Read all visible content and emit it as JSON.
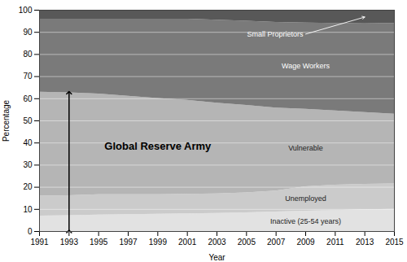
{
  "chart_data": {
    "type": "area",
    "stacked": true,
    "x": [
      1991,
      1993,
      1995,
      1997,
      1999,
      2001,
      2003,
      2005,
      2007,
      2009,
      2011,
      2013,
      2015
    ],
    "series": [
      {
        "name": "Inactive (25-54 years)",
        "color": "#e2e2e2",
        "values": [
          7.0,
          7.2,
          7.4,
          7.6,
          7.8,
          8.0,
          8.2,
          8.5,
          8.8,
          9.2,
          9.5,
          9.8,
          10.0
        ]
      },
      {
        "name": "Unemployed",
        "color": "#cbcbcb",
        "values": [
          9.0,
          9.0,
          9.2,
          9.0,
          8.8,
          8.8,
          8.8,
          9.0,
          9.5,
          11.0,
          11.5,
          11.5,
          11.5
        ]
      },
      {
        "name": "Vulnerable",
        "color": "#b5b5b5",
        "values": [
          47.0,
          46.5,
          45.5,
          44.5,
          43.5,
          42.5,
          41.0,
          39.5,
          37.5,
          35.0,
          33.5,
          32.5,
          31.5
        ]
      },
      {
        "name": "Wage Workers",
        "color": "#7a7a7a",
        "values": [
          33.0,
          33.3,
          33.9,
          34.9,
          35.9,
          36.7,
          37.5,
          38.0,
          38.7,
          39.0,
          39.5,
          40.0,
          41.0
        ]
      },
      {
        "name": "Small Proprietors",
        "color": "#585858",
        "values": [
          4.0,
          4.0,
          4.0,
          4.0,
          4.0,
          4.0,
          4.5,
          5.0,
          5.5,
          5.8,
          6.0,
          6.2,
          6.0
        ]
      }
    ],
    "xlabel": "Year",
    "ylabel": "Percentage",
    "xlim": [
      1991,
      2015
    ],
    "ylim": [
      0,
      100
    ],
    "xticks": [
      1991,
      1993,
      1995,
      1997,
      1999,
      2001,
      2003,
      2005,
      2007,
      2009,
      2011,
      2013,
      2015
    ],
    "yticks": [
      0,
      10,
      20,
      30,
      40,
      50,
      60,
      70,
      80,
      90,
      100
    ],
    "grid": true,
    "annotations": [
      "Global Reserve Army"
    ]
  }
}
